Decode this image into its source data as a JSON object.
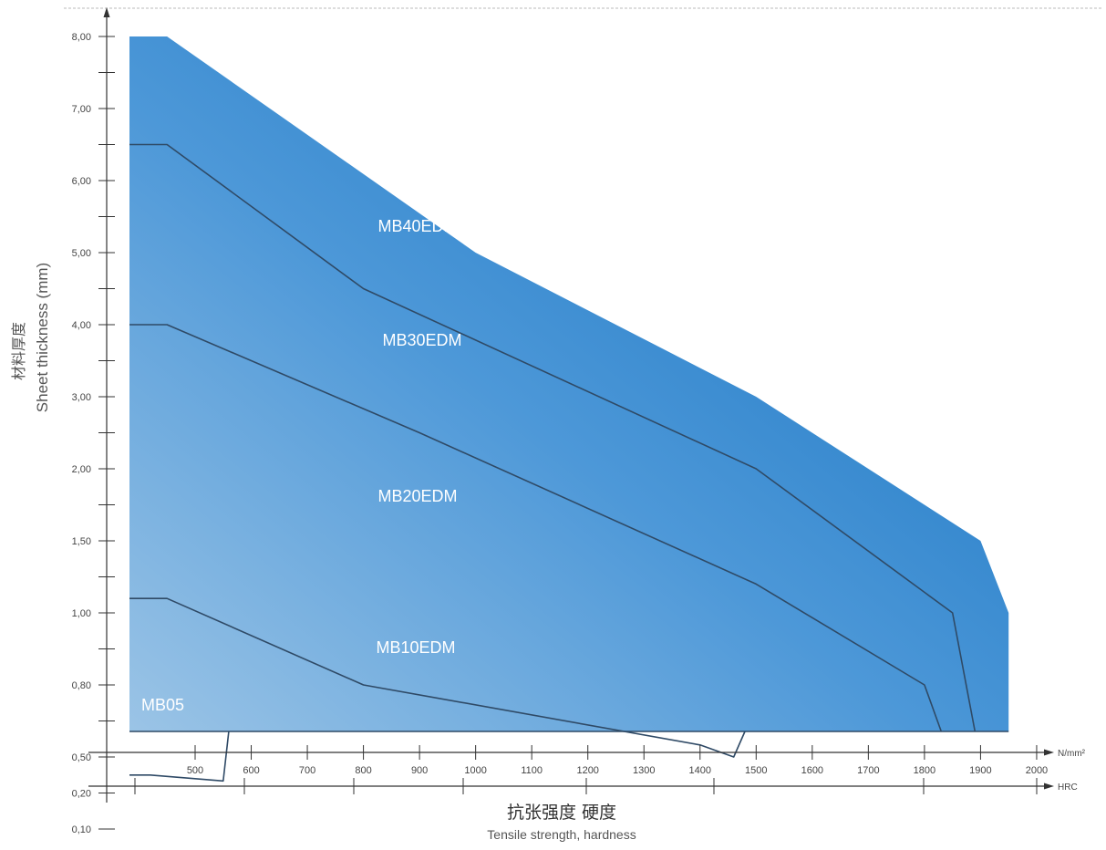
{
  "chart_data": {
    "type": "area",
    "ylabel_cn": "材料厚度",
    "ylabel": "Sheet thickness (mm)",
    "xlabel_cn": "抗张强度 硬度",
    "xlabel": "Tensile strength, hardness",
    "x_unit": "N/mm²",
    "hrc_label": "HRC",
    "y_ticks": [
      "8,00",
      "7,00",
      "6,00",
      "5,00",
      "4,00",
      "3,00",
      "2,00",
      "1,50",
      "1,00",
      "0,80",
      "0,50",
      "0,20",
      "0,10"
    ],
    "x_ticks": [
      "500",
      "600",
      "700",
      "800",
      "900",
      "1000",
      "1100",
      "1200",
      "1300",
      "1400",
      "1500",
      "1600",
      "1700",
      "1800",
      "1900",
      "2000"
    ],
    "series": [
      {
        "name": "MB40EDM",
        "x": [
          400,
          450,
          1000,
          1500,
          1900,
          1950,
          1950
        ],
        "y": [
          "8,00",
          "8,00",
          "5,00",
          "3,00",
          "1,50",
          "1,00",
          "0,10"
        ]
      },
      {
        "name": "MB30EDM",
        "x": [
          400,
          450,
          800,
          1500,
          1850,
          1890
        ],
        "y": [
          "6,50",
          "6,50",
          "4,50",
          "2,00",
          "1,00",
          "0,10"
        ]
      },
      {
        "name": "MB20EDM",
        "x": [
          400,
          450,
          900,
          1500,
          1800,
          1830
        ],
        "y": [
          "4,00",
          "4,00",
          "2,50",
          "1,20",
          "0,80",
          "0,10"
        ]
      },
      {
        "name": "MB10EDM",
        "x": [
          400,
          450,
          800,
          1400,
          1460,
          1480
        ],
        "y": [
          "1,10",
          "1,10",
          "0,80",
          "0,55",
          "0,50",
          "0,10"
        ]
      },
      {
        "name": "MB05",
        "x": [
          400,
          420,
          550,
          560
        ],
        "y": [
          "0,35",
          "0,35",
          "0,30",
          "0,10"
        ]
      }
    ]
  }
}
